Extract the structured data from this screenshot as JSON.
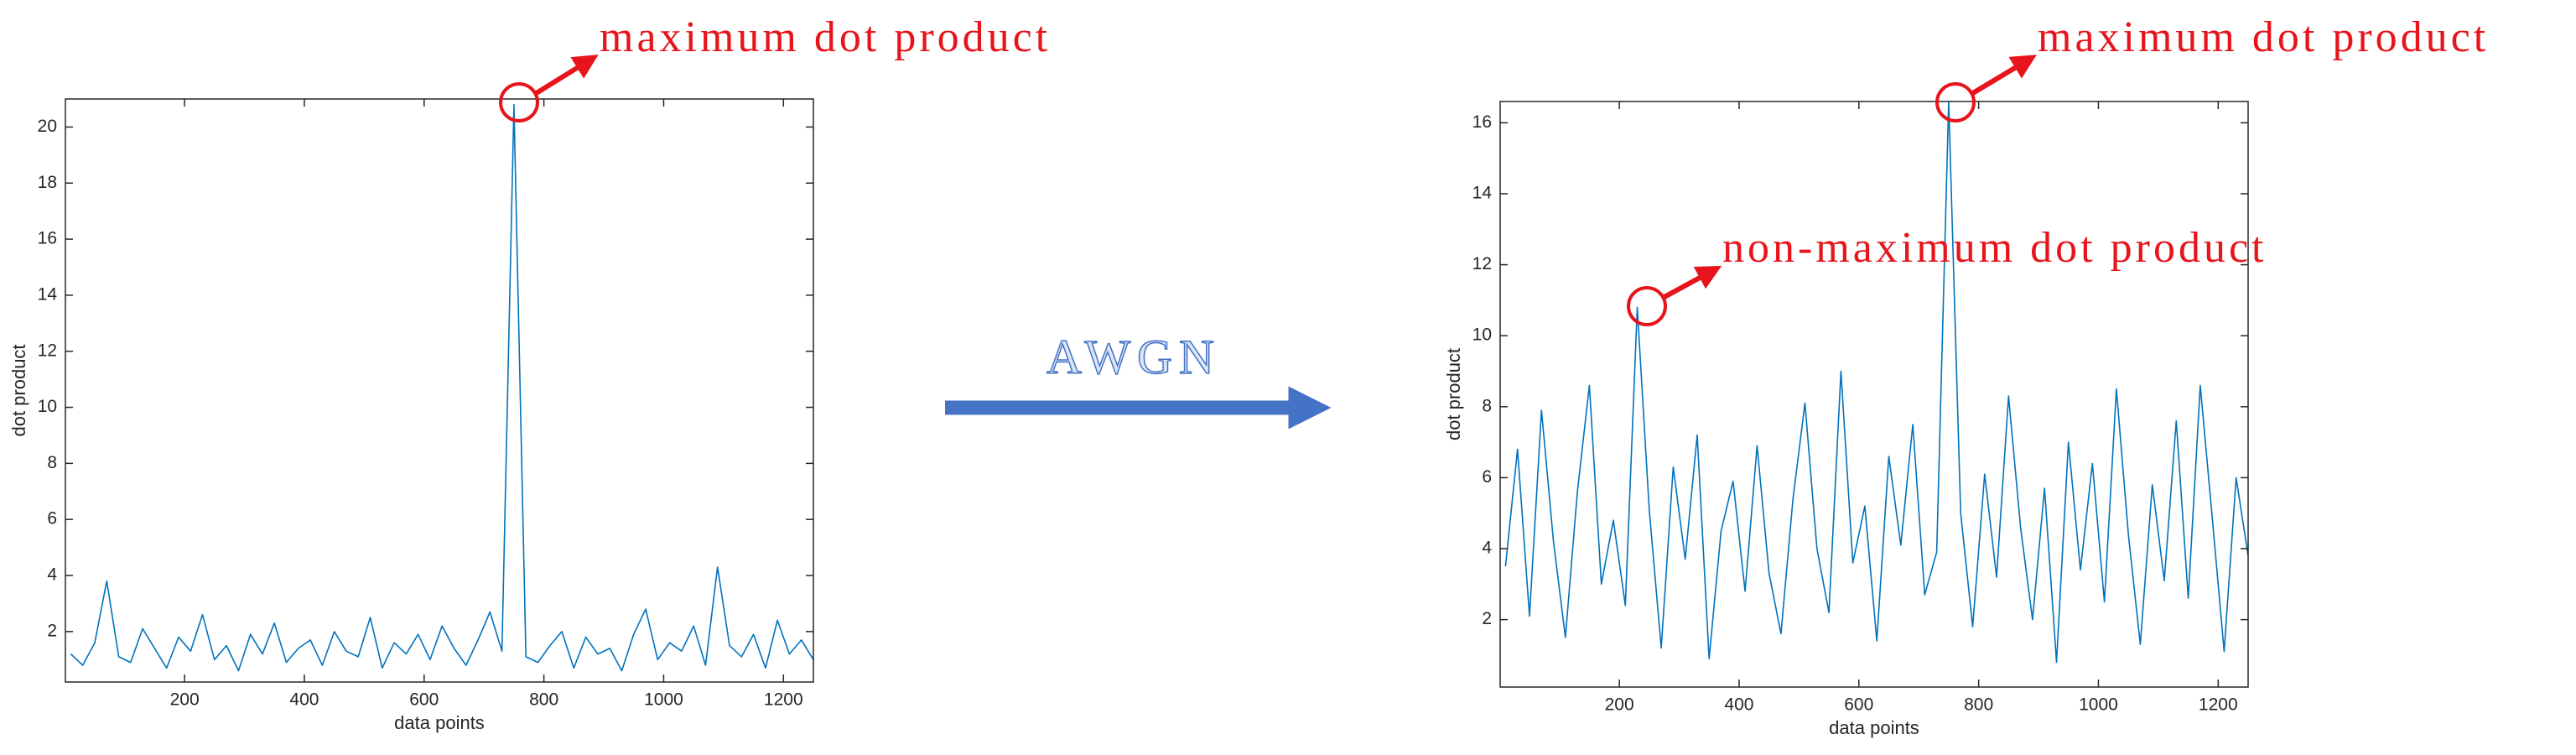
{
  "chart_data": [
    {
      "type": "line",
      "xlabel": "data points",
      "ylabel": "dot product",
      "x": [
        10,
        30,
        50,
        70,
        90,
        110,
        130,
        150,
        170,
        190,
        210,
        230,
        250,
        270,
        290,
        310,
        330,
        350,
        370,
        390,
        410,
        430,
        450,
        470,
        490,
        510,
        530,
        550,
        570,
        590,
        610,
        630,
        650,
        670,
        690,
        710,
        730,
        750,
        770,
        790,
        810,
        830,
        850,
        870,
        890,
        910,
        930,
        950,
        970,
        990,
        1010,
        1030,
        1050,
        1070,
        1090,
        1110,
        1130,
        1150,
        1170,
        1190,
        1210,
        1230,
        1250
      ],
      "values": [
        1.2,
        0.8,
        1.6,
        3.8,
        1.1,
        0.9,
        2.1,
        1.4,
        0.7,
        1.8,
        1.3,
        2.6,
        1.0,
        1.5,
        0.6,
        1.9,
        1.2,
        2.3,
        0.9,
        1.4,
        1.7,
        0.8,
        2.0,
        1.3,
        1.1,
        2.5,
        0.7,
        1.6,
        1.2,
        1.9,
        1.0,
        2.2,
        1.4,
        0.8,
        1.7,
        2.7,
        1.3,
        20.8,
        1.1,
        0.9,
        1.5,
        2.0,
        0.7,
        1.8,
        1.2,
        1.4,
        0.6,
        1.9,
        2.8,
        1.0,
        1.6,
        1.3,
        2.2,
        0.8,
        4.3,
        1.5,
        1.1,
        1.9,
        0.7,
        2.4,
        1.2,
        1.7,
        1.0
      ],
      "color": "#0072bd",
      "xlim": [
        1,
        1250
      ],
      "ylim": [
        0.2,
        21
      ],
      "xticks": [
        200,
        400,
        600,
        800,
        1000,
        1200
      ],
      "yticks": [
        2,
        4,
        6,
        8,
        10,
        12,
        14,
        16,
        18,
        20
      ],
      "annotations": [
        "maximum dot product"
      ]
    },
    {
      "type": "line",
      "xlabel": "data points",
      "ylabel": "dot product",
      "x": [
        10,
        30,
        50,
        70,
        90,
        110,
        130,
        150,
        170,
        190,
        210,
        230,
        250,
        270,
        290,
        310,
        330,
        350,
        370,
        390,
        410,
        430,
        450,
        470,
        490,
        510,
        530,
        550,
        570,
        590,
        610,
        630,
        650,
        670,
        690,
        710,
        730,
        750,
        770,
        790,
        810,
        830,
        850,
        870,
        890,
        910,
        930,
        950,
        970,
        990,
        1010,
        1030,
        1050,
        1070,
        1090,
        1110,
        1130,
        1150,
        1170,
        1190,
        1210,
        1230,
        1250
      ],
      "values": [
        3.5,
        6.8,
        2.1,
        7.9,
        4.2,
        1.5,
        5.6,
        8.6,
        3.0,
        4.8,
        2.4,
        10.8,
        5.1,
        1.2,
        6.3,
        3.7,
        7.2,
        0.9,
        4.5,
        5.9,
        2.8,
        6.9,
        3.3,
        1.6,
        5.4,
        8.1,
        4.0,
        2.2,
        9.0,
        3.6,
        5.2,
        1.4,
        6.6,
        4.1,
        7.5,
        2.7,
        3.9,
        16.6,
        5.0,
        1.8,
        6.1,
        3.2,
        8.3,
        4.6,
        2.0,
        5.7,
        0.8,
        7.0,
        3.4,
        6.4,
        2.5,
        8.5,
        4.4,
        1.3,
        5.8,
        3.1,
        7.6,
        2.6,
        8.6,
        4.9,
        1.1,
        6.0,
        3.8
      ],
      "color": "#0072bd",
      "xlim": [
        1,
        1250
      ],
      "ylim": [
        0.1,
        16.6
      ],
      "xticks": [
        200,
        400,
        600,
        800,
        1000,
        1200
      ],
      "yticks": [
        2,
        4,
        6,
        8,
        10,
        12,
        14,
        16
      ],
      "annotations": [
        "maximum dot product",
        "non-maximum dot product"
      ]
    }
  ],
  "transition_label": "AWGN"
}
